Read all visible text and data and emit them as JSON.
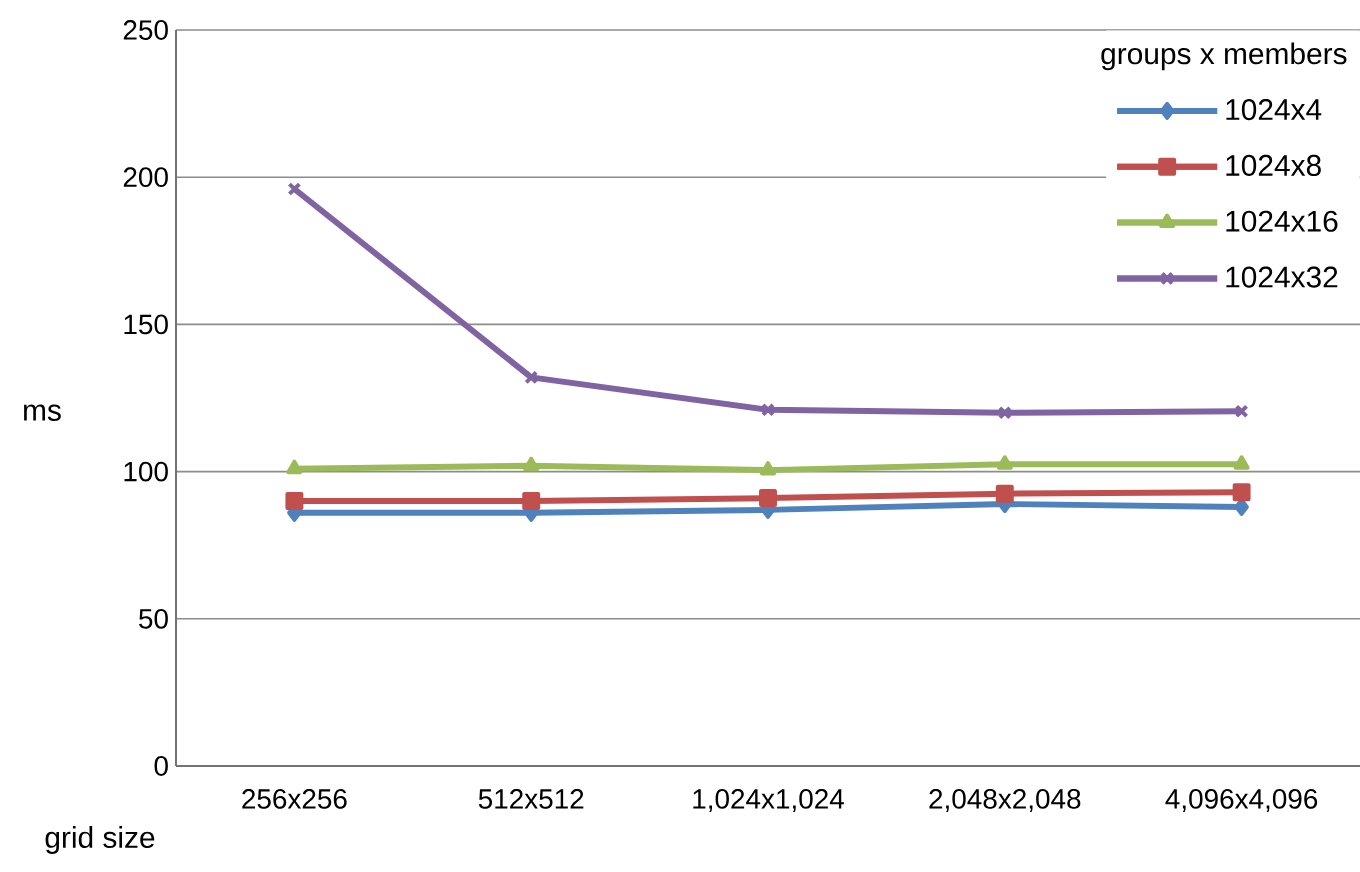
{
  "chart_data": {
    "type": "line",
    "xlabel": "grid size",
    "ylabel": "ms",
    "legend_title": "groups x members",
    "categories": [
      "256x256",
      "512x512",
      "1,024x1,024",
      "2,048x2,048",
      "4,096x4,096"
    ],
    "series": [
      {
        "name": "1024x4",
        "color": "#4f81bd",
        "marker": "diamond",
        "values": [
          86,
          86,
          87,
          89,
          88
        ]
      },
      {
        "name": "1024x8",
        "color": "#c0504d",
        "marker": "square",
        "values": [
          90,
          90,
          91,
          92.5,
          93
        ]
      },
      {
        "name": "1024x16",
        "color": "#9bbb59",
        "marker": "triangle",
        "values": [
          101,
          102,
          100.5,
          102.5,
          102.5
        ]
      },
      {
        "name": "1024x32",
        "color": "#8064a2",
        "marker": "cross",
        "values": [
          196,
          132,
          121,
          120,
          120.5
        ]
      }
    ],
    "ylim": [
      0,
      250
    ],
    "yticks": [
      0,
      50,
      100,
      150,
      200,
      250
    ],
    "grid": "y",
    "legend": "top right",
    "line_style": "solid"
  }
}
